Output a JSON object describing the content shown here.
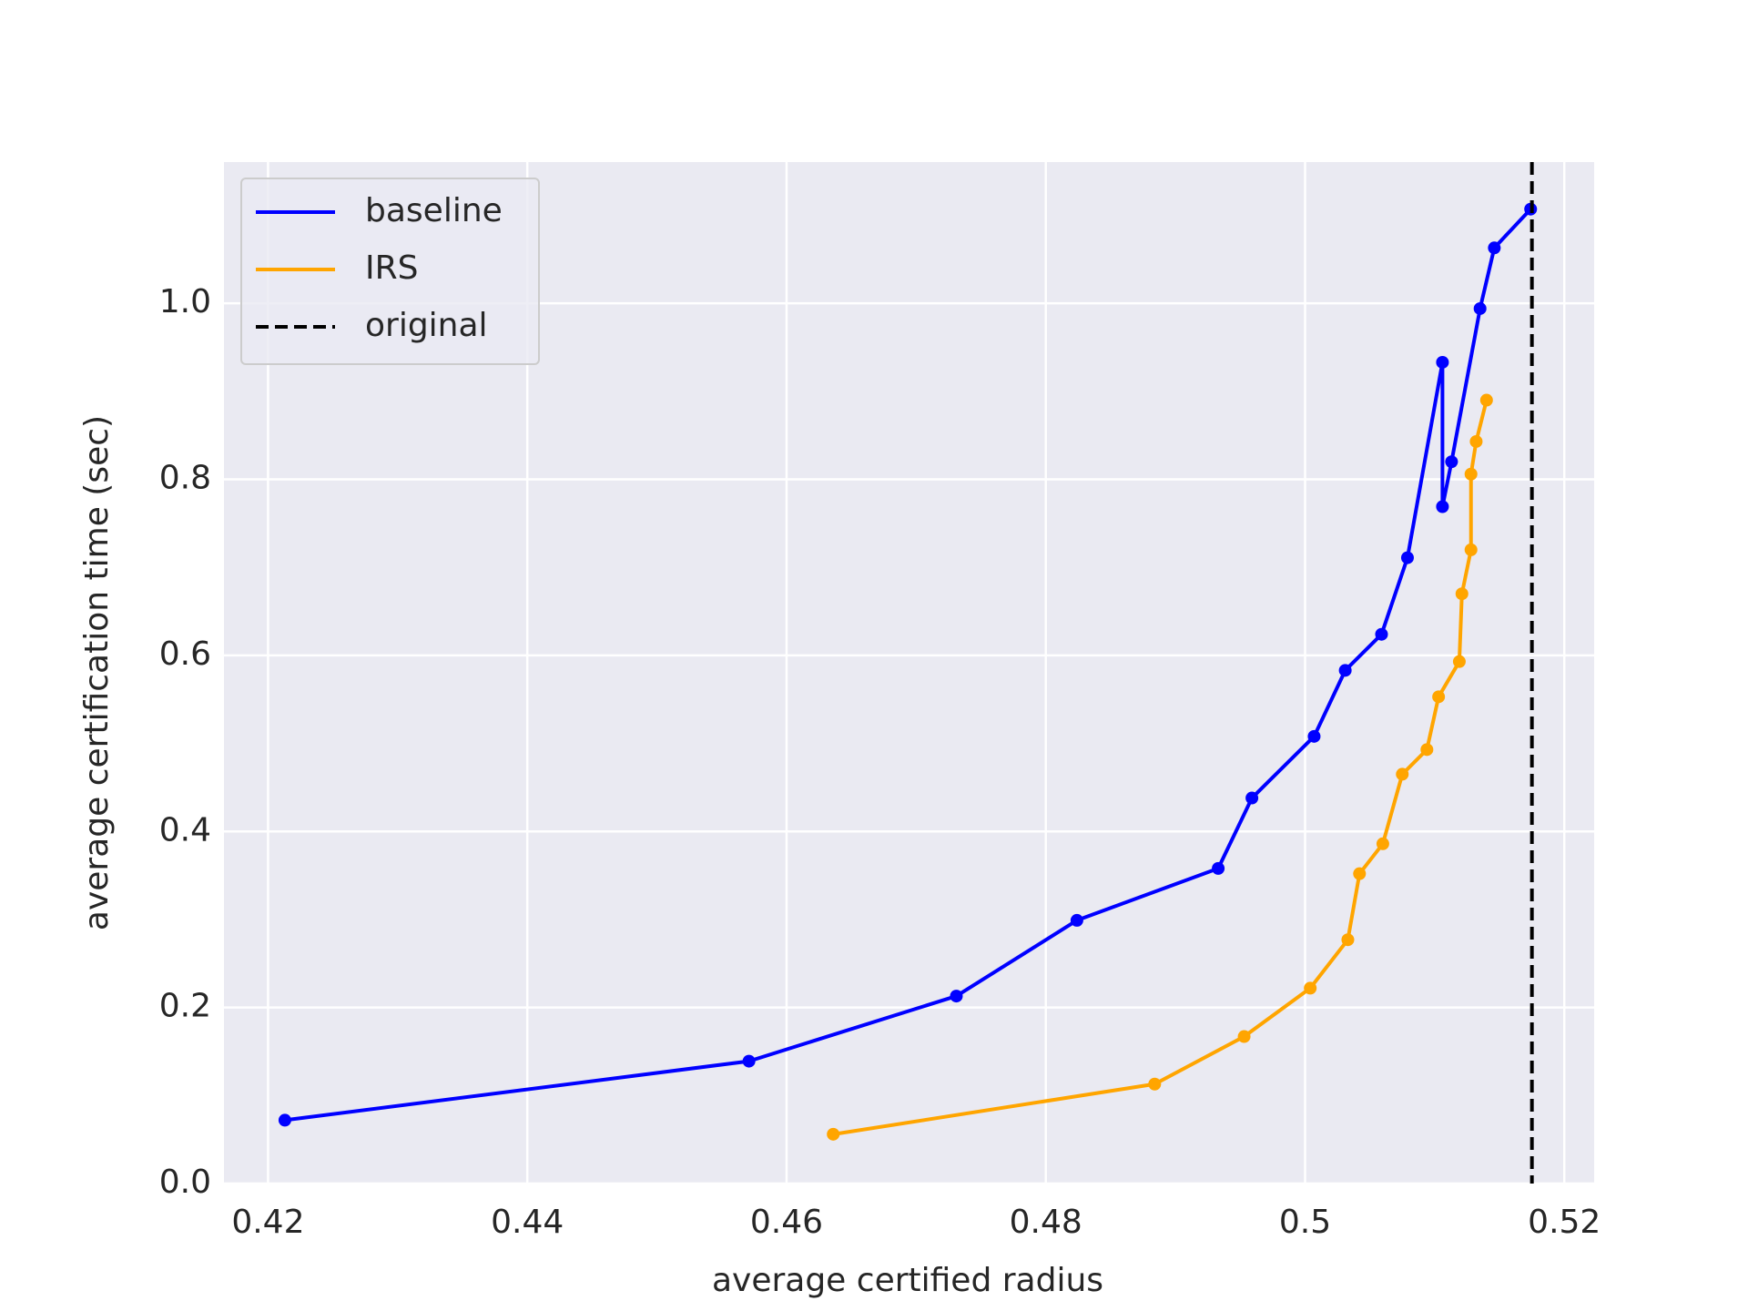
{
  "chart_data": {
    "type": "line",
    "xlabel": "average certified radius",
    "ylabel": "average certification time (sec)",
    "xlim": [
      0.4166,
      0.5223
    ],
    "ylim": [
      0,
      1.1605
    ],
    "xticks": [
      0.42,
      0.44,
      0.46,
      0.48,
      0.5,
      0.52
    ],
    "yticks": [
      {
        "value": 0,
        "label": "0.0"
      },
      0.2,
      0.4,
      0.6,
      0.8,
      {
        "value": 1,
        "label": "1.0"
      }
    ],
    "grid": true,
    "legend": "upper left",
    "series": [
      {
        "name": "baseline",
        "color": "#0000ff",
        "x": [
          0.4213,
          0.4571,
          0.4731,
          0.4824,
          0.4933,
          0.4959,
          0.5007,
          0.5031,
          0.5059,
          0.5079,
          0.5106,
          0.5106,
          0.5113,
          0.5135,
          0.5146,
          0.5174
        ],
        "values": [
          0.072,
          0.139,
          0.213,
          0.299,
          0.358,
          0.438,
          0.508,
          0.583,
          0.624,
          0.711,
          0.933,
          0.769,
          0.82,
          0.994,
          1.063,
          1.107
        ]
      },
      {
        "name": "IRS",
        "color": "#ffa500",
        "x": [
          0.4636,
          0.4884,
          0.4953,
          0.5004,
          0.5033,
          0.5042,
          0.506,
          0.5075,
          0.5094,
          0.5103,
          0.5119,
          0.5121,
          0.5128,
          0.5128,
          0.5132,
          0.514
        ],
        "values": [
          0.056,
          0.113,
          0.167,
          0.222,
          0.277,
          0.352,
          0.386,
          0.465,
          0.493,
          0.553,
          0.593,
          0.67,
          0.72,
          0.806,
          0.843,
          0.89
        ]
      }
    ],
    "reference_line": {
      "name": "original",
      "x": 0.5175,
      "color": "#000000",
      "dashed": true
    }
  }
}
